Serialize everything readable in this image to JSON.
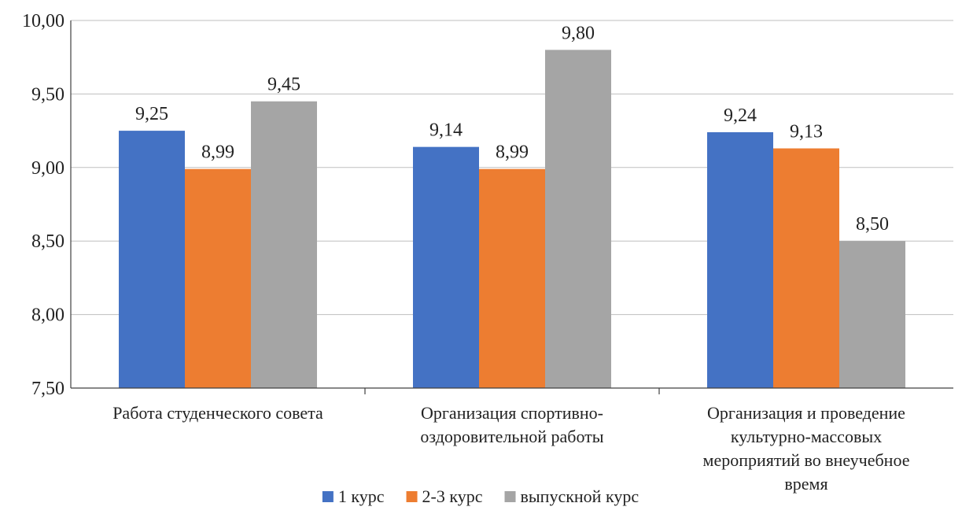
{
  "chart_data": {
    "type": "bar",
    "title": "",
    "xlabel": "",
    "ylabel": "",
    "ylim": [
      7.5,
      10.0
    ],
    "yticks": [
      7.5,
      8.0,
      8.5,
      9.0,
      9.5,
      10.0
    ],
    "ytick_labels": [
      "7,50",
      "8,00",
      "8,50",
      "9,00",
      "9,50",
      "10,00"
    ],
    "grid": "horizontal",
    "legend_position": "bottom",
    "categories": [
      [
        "Работа студенческого совета"
      ],
      [
        "Организация спортивно-",
        "оздоровительной работы"
      ],
      [
        "Организация и проведение",
        "культурно-массовых",
        "мероприятий во внеучебное",
        "время"
      ]
    ],
    "series": [
      {
        "name": "1 курс",
        "color": "#4472C4",
        "values": [
          9.25,
          9.14,
          9.24
        ],
        "labels": [
          "9,25",
          "9,14",
          "9,24"
        ]
      },
      {
        "name": "2-3 курс",
        "color": "#ED7D31",
        "values": [
          8.99,
          8.99,
          9.13
        ],
        "labels": [
          "8,99",
          "8,99",
          "9,13"
        ]
      },
      {
        "name": "выпускной курс",
        "color": "#A5A5A5",
        "values": [
          9.45,
          9.8,
          8.5
        ],
        "labels": [
          "9,45",
          "9,80",
          "8,50"
        ]
      }
    ]
  }
}
